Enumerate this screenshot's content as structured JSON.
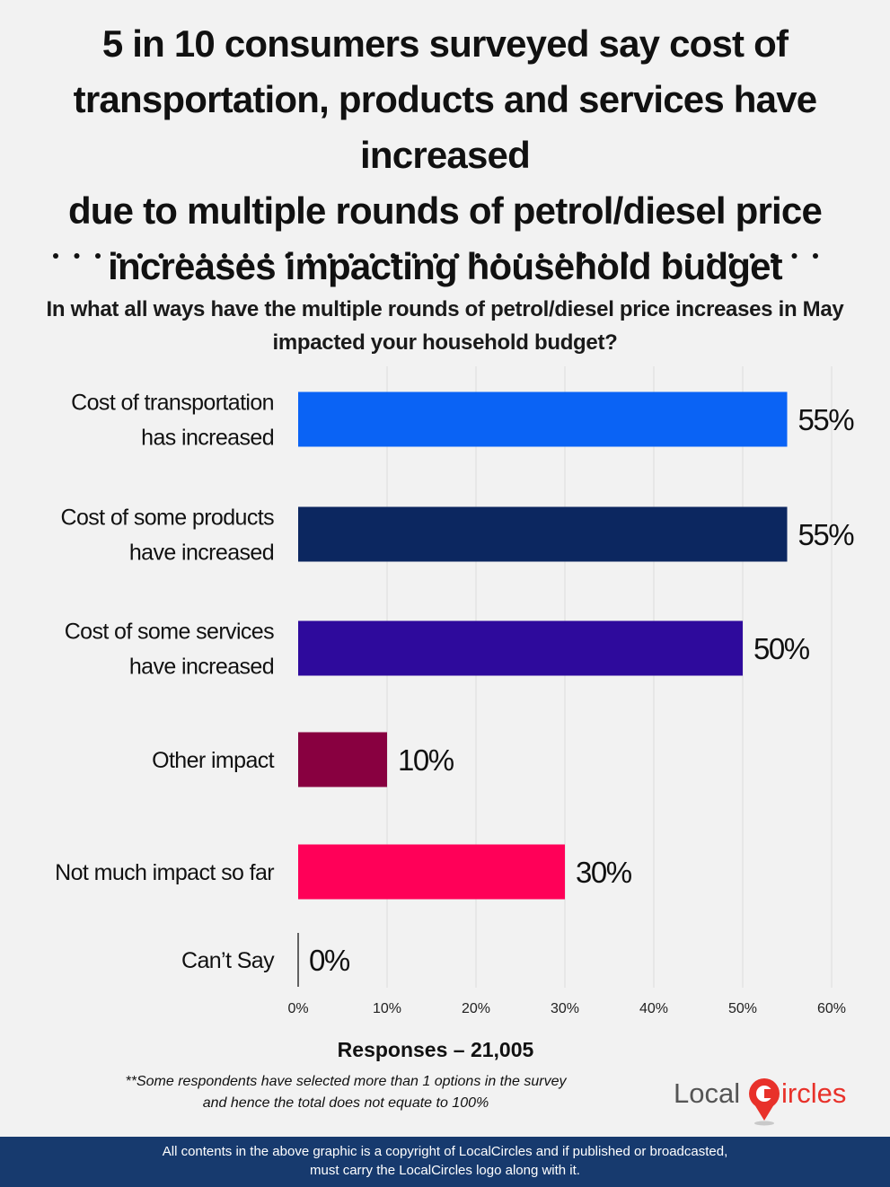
{
  "headline": {
    "line1": "5 in 10 consumers surveyed say cost of",
    "line2": "transportation, products and services have increased",
    "line3": "due to multiple rounds of petrol/diesel price",
    "line4": "increases impacting household budget"
  },
  "question": {
    "line1": "In what all ways have the multiple rounds of petrol/diesel price increases in May",
    "line2": "impacted your household budget?"
  },
  "chart_data": {
    "type": "bar",
    "orientation": "horizontal",
    "categories": [
      [
        "Cost of transportation",
        "has increased"
      ],
      [
        "Cost of some products",
        "have increased"
      ],
      [
        "Cost of some services",
        "have increased"
      ],
      [
        "Other impact"
      ],
      [
        "Not much impact so far"
      ],
      [
        "Can’t Say"
      ]
    ],
    "values": [
      55,
      55,
      50,
      10,
      30,
      0
    ],
    "value_labels": [
      "55%",
      "55%",
      "50%",
      "10%",
      "30%",
      "0%"
    ],
    "colors": [
      "#0a63f5",
      "#0c2760",
      "#2e0a9c",
      "#880040",
      "#ff0058",
      "#333333"
    ],
    "xlim": [
      0,
      60
    ],
    "xticks": [
      0,
      10,
      20,
      30,
      40,
      50,
      60
    ],
    "xtick_labels": [
      "0%",
      "10%",
      "20%",
      "30%",
      "40%",
      "50%",
      "60%"
    ],
    "grid": "vertical-gridlines"
  },
  "responses": "Responses – 21,005",
  "footnote": {
    "line1": "**Some respondents have selected more than 1 options in the survey",
    "line2": "and hence the total does not equate to 100%"
  },
  "logo": {
    "part1": "Local",
    "part2": "ircles",
    "accent": "#e8312a"
  },
  "footer": {
    "line1": "All contents in the above graphic is a copyright of LocalCircles and if published or broadcasted,",
    "line2": "must carry the LocalCircles logo along with it."
  }
}
